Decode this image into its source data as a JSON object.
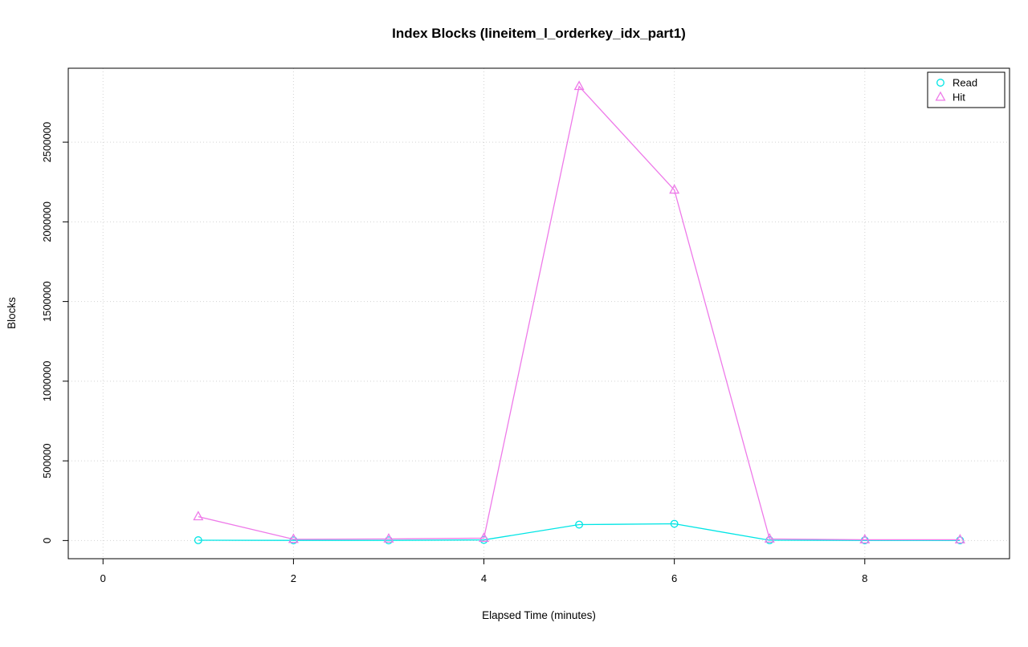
{
  "chart_data": {
    "type": "line",
    "title": "Index Blocks (lineitem_l_orderkey_idx_part1)",
    "xlabel": "Elapsed Time (minutes)",
    "ylabel": "Blocks",
    "x_ticks": [
      0,
      2,
      4,
      6,
      8
    ],
    "y_ticks": [
      0,
      500000,
      1000000,
      1500000,
      2000000,
      2500000
    ],
    "xlim": [
      -0.365,
      9.52
    ],
    "ylim": [
      -114000,
      2964000
    ],
    "grid": true,
    "legend_position": "top-right",
    "x": [
      1,
      2,
      3,
      4,
      5,
      6,
      7,
      8,
      9
    ],
    "series": [
      {
        "name": "Read",
        "marker": "circle",
        "color": "#00e5e5",
        "values": [
          2000,
          1000,
          1000,
          4000,
          100000,
          105000,
          2000,
          1000,
          1000
        ]
      },
      {
        "name": "Hit",
        "marker": "triangle",
        "color": "#ee7ae9",
        "values": [
          150000,
          8000,
          10000,
          15000,
          2850000,
          2200000,
          10000,
          5000,
          5000
        ]
      }
    ]
  }
}
